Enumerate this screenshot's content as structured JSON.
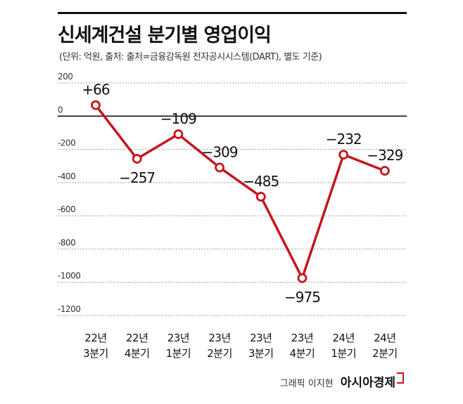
{
  "title": "신세계건설 분기별 영업이익",
  "subtitle": "(단위: 억원, 출처: 출처=금융감독원 전자공시시스템(DART), 별도 기준)",
  "credit": {
    "prefix": "그래픽 이지현",
    "brand": "아시아경제"
  },
  "colors": {
    "line": "#c4161c",
    "marker_fill": "#ffffff",
    "grid": "#9a9a9a",
    "zero_line": "#111111"
  },
  "chart_data": {
    "type": "line",
    "x_line1": [
      "22년",
      "22년",
      "23년",
      "23년",
      "23년",
      "23년",
      "24년",
      "24년"
    ],
    "x_line2": [
      "3분기",
      "4분기",
      "1분기",
      "2분기",
      "3분기",
      "4분기",
      "1분기",
      "2분기"
    ],
    "values": [
      66,
      -257,
      -109,
      -309,
      -485,
      -975,
      -232,
      -329
    ],
    "data_labels": [
      "+66",
      "−257",
      "−109",
      "−309",
      "−485",
      "−975",
      "−232",
      "−329"
    ],
    "yticks": [
      200,
      0,
      -200,
      -400,
      -600,
      -800,
      -1000,
      -1200
    ],
    "ytick_labels": [
      "200",
      "0",
      "-200",
      "-400",
      "-600",
      "-800",
      "-1000",
      "-1200"
    ],
    "ylim": [
      -1200,
      200
    ],
    "grid": true
  }
}
